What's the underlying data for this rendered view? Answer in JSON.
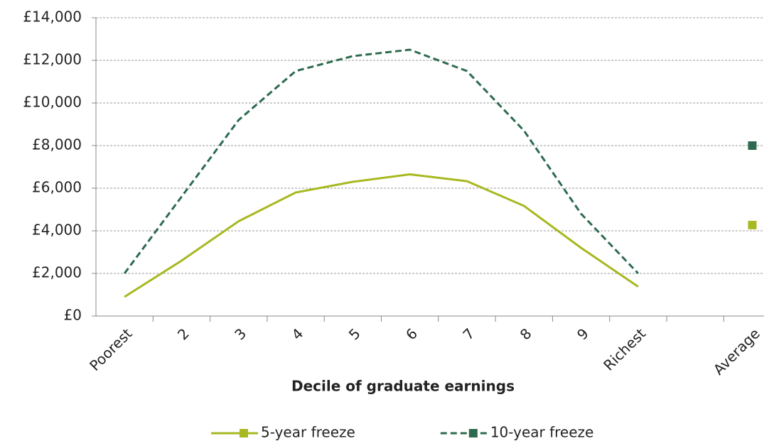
{
  "chart_data": {
    "type": "line",
    "x_label": "Decile of graduate earnings",
    "categories": [
      "Poorest",
      "2",
      "3",
      "4",
      "5",
      "6",
      "7",
      "8",
      "9",
      "Richest",
      null,
      "Average"
    ],
    "series": [
      {
        "name": "5-year freeze",
        "color": "#a8b820",
        "dash": false,
        "values": [
          900,
          2600,
          4450,
          5800,
          6300,
          6650,
          6330,
          5170,
          3200,
          1380,
          null,
          4270
        ]
      },
      {
        "name": "10-year freeze",
        "color": "#2e6b4e",
        "dash": true,
        "values": [
          2000,
          5600,
          9200,
          11500,
          12200,
          12500,
          11500,
          8700,
          4800,
          2000,
          null,
          8000
        ]
      }
    ],
    "ylim": [
      0,
      14000
    ],
    "yticks": [
      {
        "value": 0,
        "label": "£0"
      },
      {
        "value": 2000,
        "label": "£2,000"
      },
      {
        "value": 4000,
        "label": "£4,000"
      },
      {
        "value": 6000,
        "label": "£6,000"
      },
      {
        "value": 8000,
        "label": "£8,000"
      },
      {
        "value": 10000,
        "label": "£10,000"
      },
      {
        "value": 12000,
        "label": "£12,000"
      },
      {
        "value": 14000,
        "label": "£14,000"
      }
    ],
    "grid": true,
    "legend": "bottom"
  }
}
